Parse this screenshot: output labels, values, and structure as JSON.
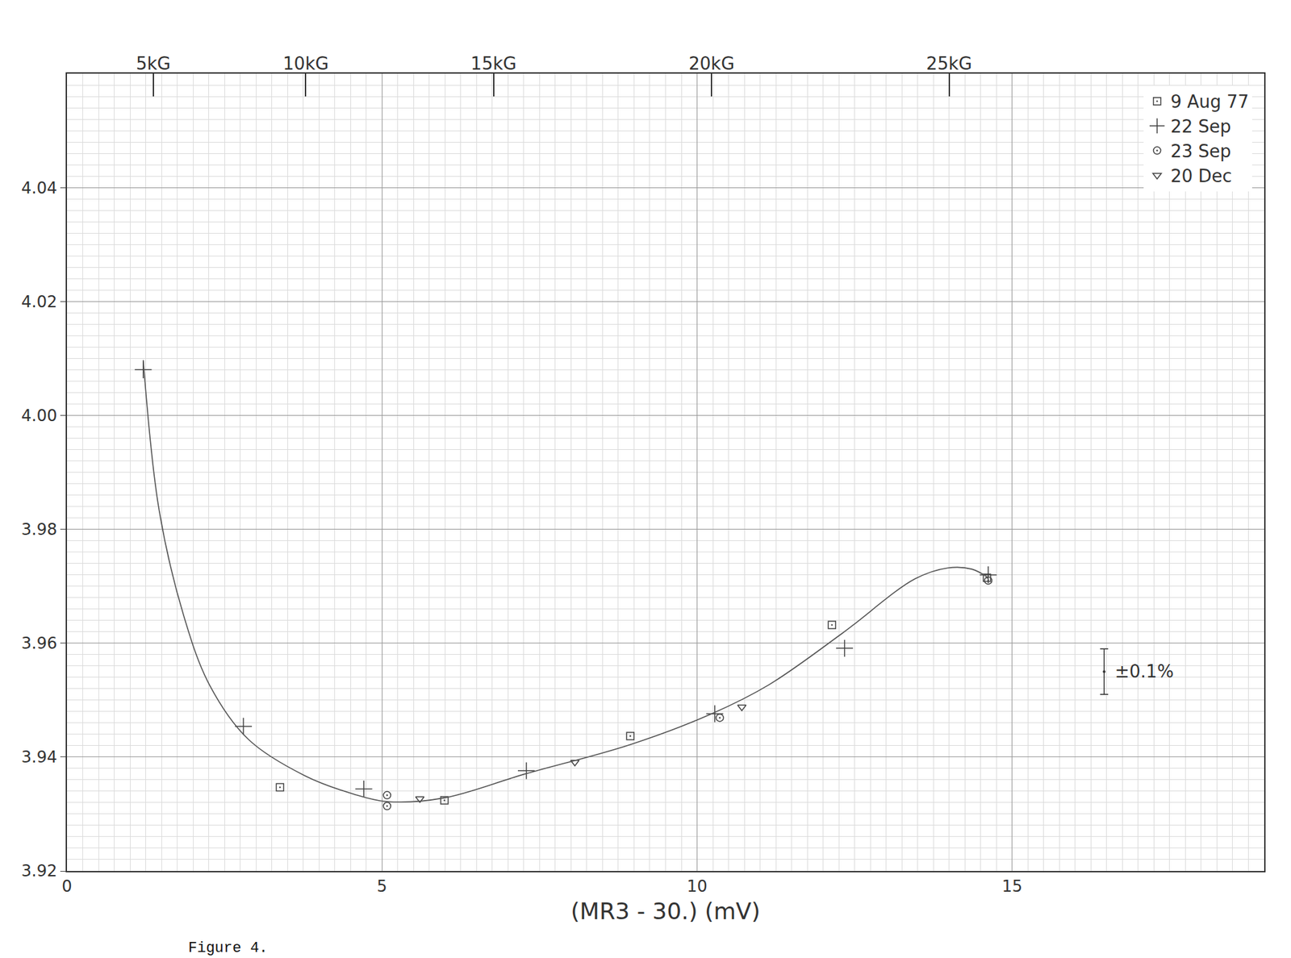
{
  "chart_data": {
    "type": "scatter",
    "caption": "Figure 4.",
    "x_label": "(MR3 - 30.) (mV)",
    "xlim": [
      0,
      19
    ],
    "xticks": [
      0,
      5,
      10,
      15
    ],
    "ylim": [
      3.92,
      4.06
    ],
    "yticks": [
      3.92,
      3.94,
      3.96,
      3.98,
      {
        "value": 4.0,
        "label": "4.00"
      },
      4.02,
      4.04
    ],
    "top_axis": {
      "ticks": [
        {
          "value": 1.37,
          "label": "5kG"
        },
        {
          "value": 3.79,
          "label": "10kG"
        },
        {
          "value": 6.77,
          "label": "15kG"
        },
        {
          "value": 10.23,
          "label": "20kG"
        },
        {
          "value": 14.0,
          "label": "25kG"
        }
      ]
    },
    "grid": true,
    "legend": "top right",
    "series": [
      {
        "name": "9 Aug 77",
        "type": "scatter",
        "marker": "square-dot",
        "color": "#444444",
        "x": [
          3.38,
          5.99,
          8.94,
          12.14,
          14.6
        ],
        "values": [
          3.9347,
          3.9324,
          3.9437,
          3.9632,
          3.9715
        ]
      },
      {
        "name": "22 Sep",
        "type": "scatter",
        "marker": "cross",
        "color": "#444444",
        "x": [
          1.21,
          2.8,
          4.71,
          7.29,
          10.28,
          12.34,
          14.62
        ],
        "values": [
          4.008,
          3.9454,
          3.9344,
          3.9376,
          3.9476,
          3.9591,
          3.972
        ]
      },
      {
        "name": "23 Sep",
        "type": "scatter",
        "marker": "circle-dot",
        "color": "#444444",
        "x": [
          5.08,
          5.08,
          10.36,
          14.62
        ],
        "values": [
          3.9333,
          3.9314,
          3.9469,
          3.971
        ]
      },
      {
        "name": "20 Dec",
        "type": "scatter",
        "marker": "triangle-down",
        "color": "#444444",
        "x": [
          5.6,
          8.06,
          10.71
        ],
        "values": [
          3.9327,
          3.9391,
          3.9488
        ]
      },
      {
        "type": "line",
        "line_style": "solid",
        "color": "#555555",
        "x": [
          1.21,
          1.46,
          1.85,
          2.26,
          2.88,
          3.78,
          4.55,
          5.07,
          5.97,
          7.26,
          8.94,
          10.23,
          11.14,
          12.3,
          13.46,
          13.97,
          14.36,
          14.62
        ],
        "values": [
          4.0097,
          3.9835,
          3.9649,
          3.9527,
          3.9431,
          3.9367,
          3.9335,
          3.9322,
          3.9328,
          3.937,
          3.9422,
          3.9476,
          3.9527,
          3.9617,
          3.9713,
          3.9732,
          3.973,
          3.9715
        ]
      }
    ],
    "error_marker": {
      "text": "±0.1%",
      "x": 16.46,
      "y": 3.955,
      "error": 0.004
    }
  }
}
